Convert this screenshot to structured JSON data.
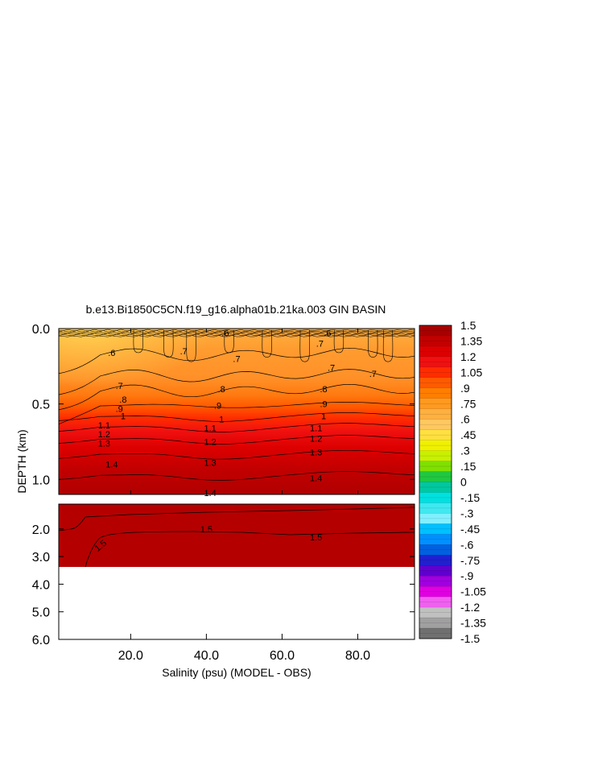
{
  "chart_data": {
    "type": "heatmap",
    "title": "b.e13.Bi1850C5CN.f19_g16.alpha01b.21ka.003 GIN BASIN",
    "xlabel": "Salinity (psu) (MODEL - OBS)",
    "ylabel": "DEPTH (km)",
    "xlim": [
      1,
      95
    ],
    "x_ticks": [
      "20.0",
      "40.0",
      "60.0",
      "80.0"
    ],
    "x_tick_values": [
      20,
      40,
      60,
      80
    ],
    "upper_panel": {
      "ylim": [
        0.0,
        1.1
      ],
      "y_ticks": [
        "0.0",
        "0.5",
        "1.0"
      ],
      "y_tick_values": [
        0.0,
        0.5,
        1.0
      ],
      "contour_levels": [
        0.6,
        0.7,
        0.8,
        0.9,
        1.0,
        1.1,
        1.2,
        1.3,
        1.4
      ],
      "contour_labels": [
        {
          "text": ".6",
          "x": 15,
          "depth": 0.16
        },
        {
          "text": ".6",
          "x": 45,
          "depth": 0.03
        },
        {
          "text": ".6",
          "x": 72,
          "depth": 0.03
        },
        {
          "text": ".7",
          "x": 34,
          "depth": 0.15
        },
        {
          "text": ".7",
          "x": 48,
          "depth": 0.2
        },
        {
          "text": ".7",
          "x": 70,
          "depth": 0.1
        },
        {
          "text": ".7",
          "x": 73,
          "depth": 0.26
        },
        {
          "text": ".7",
          "x": 84,
          "depth": 0.3
        },
        {
          "text": ".7",
          "x": 17,
          "depth": 0.38
        },
        {
          "text": ".8",
          "x": 18,
          "depth": 0.47
        },
        {
          "text": ".8",
          "x": 44,
          "depth": 0.4
        },
        {
          "text": ".8",
          "x": 71,
          "depth": 0.4
        },
        {
          "text": ".9",
          "x": 17,
          "depth": 0.53
        },
        {
          "text": ".9",
          "x": 43,
          "depth": 0.51
        },
        {
          "text": ".9",
          "x": 71,
          "depth": 0.5
        },
        {
          "text": "1",
          "x": 18,
          "depth": 0.58
        },
        {
          "text": "1",
          "x": 44,
          "depth": 0.6
        },
        {
          "text": "1",
          "x": 71,
          "depth": 0.58
        },
        {
          "text": "1.1",
          "x": 13,
          "depth": 0.64
        },
        {
          "text": "1.1",
          "x": 41,
          "depth": 0.66
        },
        {
          "text": "1.1",
          "x": 69,
          "depth": 0.66
        },
        {
          "text": "1.2",
          "x": 13,
          "depth": 0.7
        },
        {
          "text": "1.2",
          "x": 41,
          "depth": 0.75
        },
        {
          "text": "1.2",
          "x": 69,
          "depth": 0.73
        },
        {
          "text": "1.3",
          "x": 13,
          "depth": 0.76
        },
        {
          "text": "1.3",
          "x": 41,
          "depth": 0.89
        },
        {
          "text": "1.3",
          "x": 69,
          "depth": 0.82
        },
        {
          "text": "1.4",
          "x": 15,
          "depth": 0.9
        },
        {
          "text": "1.4",
          "x": 41,
          "depth": 1.09
        },
        {
          "text": "1.4",
          "x": 69,
          "depth": 0.99
        }
      ]
    },
    "lower_panel": {
      "ylim": [
        1.1,
        6.0
      ],
      "y_ticks": [
        "2.0",
        "3.0",
        "4.0",
        "5.0",
        "6.0"
      ],
      "y_tick_values": [
        2.0,
        3.0,
        4.0,
        5.0,
        6.0
      ],
      "data_bottom_depth": 3.4,
      "contour_levels": [
        1.5
      ],
      "contour_labels": [
        {
          "text": "1.5",
          "x": 40,
          "depth": 2.0
        },
        {
          "text": "1.5",
          "x": 69,
          "depth": 2.3
        },
        {
          "text": "1.5",
          "x": 12,
          "depth": 2.6
        }
      ]
    },
    "colorbar": {
      "labels": [
        "1.5",
        "1.35",
        "1.2",
        "1.05",
        ".9",
        ".75",
        ".6",
        ".45",
        ".3",
        ".15",
        "0",
        "-.15",
        "-.3",
        "-.45",
        "-.6",
        "-.75",
        "-.9",
        "-1.05",
        "-1.2",
        "-1.35",
        "-1.5"
      ],
      "colors": [
        "#a80000",
        "#c20000",
        "#dc0000",
        "#f01010",
        "#ff2c00",
        "#ff5a00",
        "#ff7e00",
        "#ff9a20",
        "#ffb040",
        "#ffc860",
        "#ffe040",
        "#f0f000",
        "#c8f000",
        "#80e000",
        "#20c840",
        "#00c8a0",
        "#00e0e0",
        "#40e8f0",
        "#80f0ff",
        "#00c0ff",
        "#0090ff",
        "#0060e0",
        "#2020d0",
        "#6000d0",
        "#a000e0",
        "#e000e0",
        "#f060f0",
        "#c0c0c0",
        "#a0a0a0",
        "#707070"
      ]
    }
  }
}
